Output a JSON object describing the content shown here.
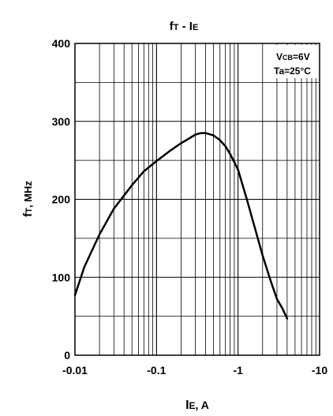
{
  "chart_data": {
    "type": "line",
    "title_main": "f",
    "title_sub": "T",
    "title_sep": " - I",
    "title_sub2": "E",
    "ylabel_main": "f",
    "ylabel_sub": "T",
    "ylabel_rest": ", MHz",
    "xlabel_main": "I",
    "xlabel_sub": "E",
    "xlabel_rest": ", A",
    "x_scale": "log",
    "x_reversed_sign": true,
    "xlim": [
      -0.01,
      -10
    ],
    "ylim": [
      0,
      400
    ],
    "grid": true,
    "x_tick_values": [
      -0.01,
      -0.1,
      -1,
      -10
    ],
    "x_tick_labels": [
      "-0.01",
      "-0.1",
      "-1",
      "-10"
    ],
    "y_tick_values": [
      0,
      100,
      200,
      300,
      400
    ],
    "y_tick_labels": [
      "0",
      "100",
      "200",
      "300",
      "400"
    ],
    "annotation": {
      "line1_main": "V",
      "line1_sub": "CB",
      "line1_rest": "=6V",
      "line2": "Ta=25°C",
      "placement": "top-right"
    },
    "series": [
      {
        "x": [
          -0.01,
          -0.013,
          -0.02,
          -0.03,
          -0.05,
          -0.07,
          -0.1,
          -0.15,
          -0.2,
          -0.25,
          -0.3,
          -0.35,
          -0.4,
          -0.5,
          -0.6,
          -0.7,
          -0.8,
          -1.0,
          -1.3,
          -1.6,
          -2.0,
          -2.5,
          -3.0,
          -3.5,
          -4.0
        ],
        "y": [
          77,
          113,
          155,
          188,
          218,
          236,
          249,
          263,
          272,
          278,
          283,
          285,
          285,
          282,
          276,
          268,
          258,
          238,
          198,
          164,
          128,
          96,
          72,
          60,
          47
        ]
      }
    ]
  }
}
